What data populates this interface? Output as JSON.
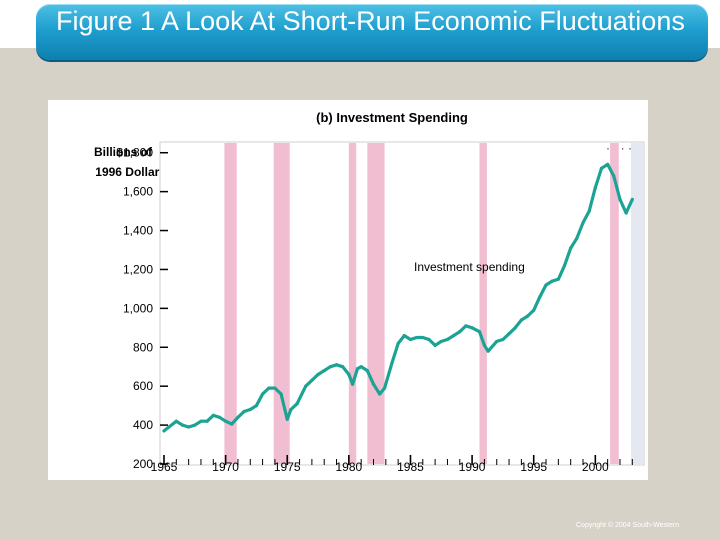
{
  "slide": {
    "title": "Figure 1 A Look At Short-Run Economic Fluctuations",
    "copyright": "Copyright © 2004  South-Western"
  },
  "colors": {
    "title_bar": "#1f9fcf",
    "series_line": "#1ba394",
    "recession_band": "#f1bdd0",
    "background": "#d6d2c8"
  },
  "chart_data": {
    "type": "line",
    "subtitle": "(b) Investment Spending",
    "ylabel_line1": "Billions of",
    "ylabel_line2": "1996 Dollars",
    "ylim": [
      200,
      1850
    ],
    "xlim": [
      1965,
      2003.3
    ],
    "y_ticks": [
      {
        "value": 1800,
        "label": "$1,800"
      },
      {
        "value": 1600,
        "label": "1,600"
      },
      {
        "value": 1400,
        "label": "1,400"
      },
      {
        "value": 1200,
        "label": "1,200"
      },
      {
        "value": 1000,
        "label": "1,000"
      },
      {
        "value": 800,
        "label": "800"
      },
      {
        "value": 600,
        "label": "600"
      },
      {
        "value": 400,
        "label": "400"
      },
      {
        "value": 200,
        "label": "200"
      }
    ],
    "x_ticks": [
      {
        "value": 1965,
        "label": "1965"
      },
      {
        "value": 1970,
        "label": "1970"
      },
      {
        "value": 1975,
        "label": "1975"
      },
      {
        "value": 1980,
        "label": "1980"
      },
      {
        "value": 1985,
        "label": "1985"
      },
      {
        "value": 1990,
        "label": "1990"
      },
      {
        "value": 1995,
        "label": "1995"
      },
      {
        "value": 2000,
        "label": "2000"
      }
    ],
    "recessions": [
      [
        1969.9,
        1970.9
      ],
      [
        1973.9,
        1975.2
      ],
      [
        1980.0,
        1980.6
      ],
      [
        1981.5,
        1982.9
      ],
      [
        1990.6,
        1991.2
      ],
      [
        2001.2,
        2001.9
      ]
    ],
    "annotation": "Investment spending",
    "series": [
      {
        "name": "Investment spending",
        "x": [
          1965.0,
          1966.0,
          1966.5,
          1967.0,
          1967.5,
          1968.0,
          1968.5,
          1969.0,
          1969.5,
          1970.0,
          1970.5,
          1971.0,
          1971.5,
          1972.0,
          1972.5,
          1973.0,
          1973.5,
          1974.0,
          1974.5,
          1975.0,
          1975.3,
          1975.8,
          1976.5,
          1977.0,
          1977.5,
          1978.0,
          1978.5,
          1979.0,
          1979.5,
          1980.0,
          1980.3,
          1980.7,
          1981.0,
          1981.5,
          1982.0,
          1982.5,
          1982.9,
          1983.5,
          1984.0,
          1984.5,
          1985.0,
          1985.5,
          1986.0,
          1986.5,
          1987.0,
          1987.5,
          1988.0,
          1988.5,
          1989.0,
          1989.5,
          1990.0,
          1990.6,
          1991.0,
          1991.3,
          1992.0,
          1992.5,
          1993.0,
          1993.5,
          1994.0,
          1994.5,
          1995.0,
          1995.5,
          1996.0,
          1996.5,
          1997.0,
          1997.5,
          1998.0,
          1998.5,
          1999.0,
          1999.5,
          2000.0,
          2000.5,
          2001.0,
          2001.5,
          2002.0,
          2002.5,
          2003.0
        ],
        "values": [
          370,
          420,
          400,
          390,
          400,
          420,
          420,
          450,
          440,
          420,
          405,
          440,
          470,
          480,
          500,
          560,
          590,
          590,
          560,
          430,
          480,
          510,
          600,
          630,
          660,
          680,
          700,
          710,
          700,
          660,
          610,
          690,
          700,
          680,
          610,
          560,
          590,
          720,
          820,
          860,
          840,
          850,
          850,
          840,
          810,
          830,
          840,
          860,
          880,
          910,
          900,
          880,
          810,
          780,
          830,
          840,
          870,
          900,
          940,
          960,
          990,
          1060,
          1120,
          1140,
          1150,
          1220,
          1310,
          1360,
          1440,
          1500,
          1620,
          1720,
          1740,
          1680,
          1560,
          1490,
          1560
        ]
      }
    ]
  }
}
